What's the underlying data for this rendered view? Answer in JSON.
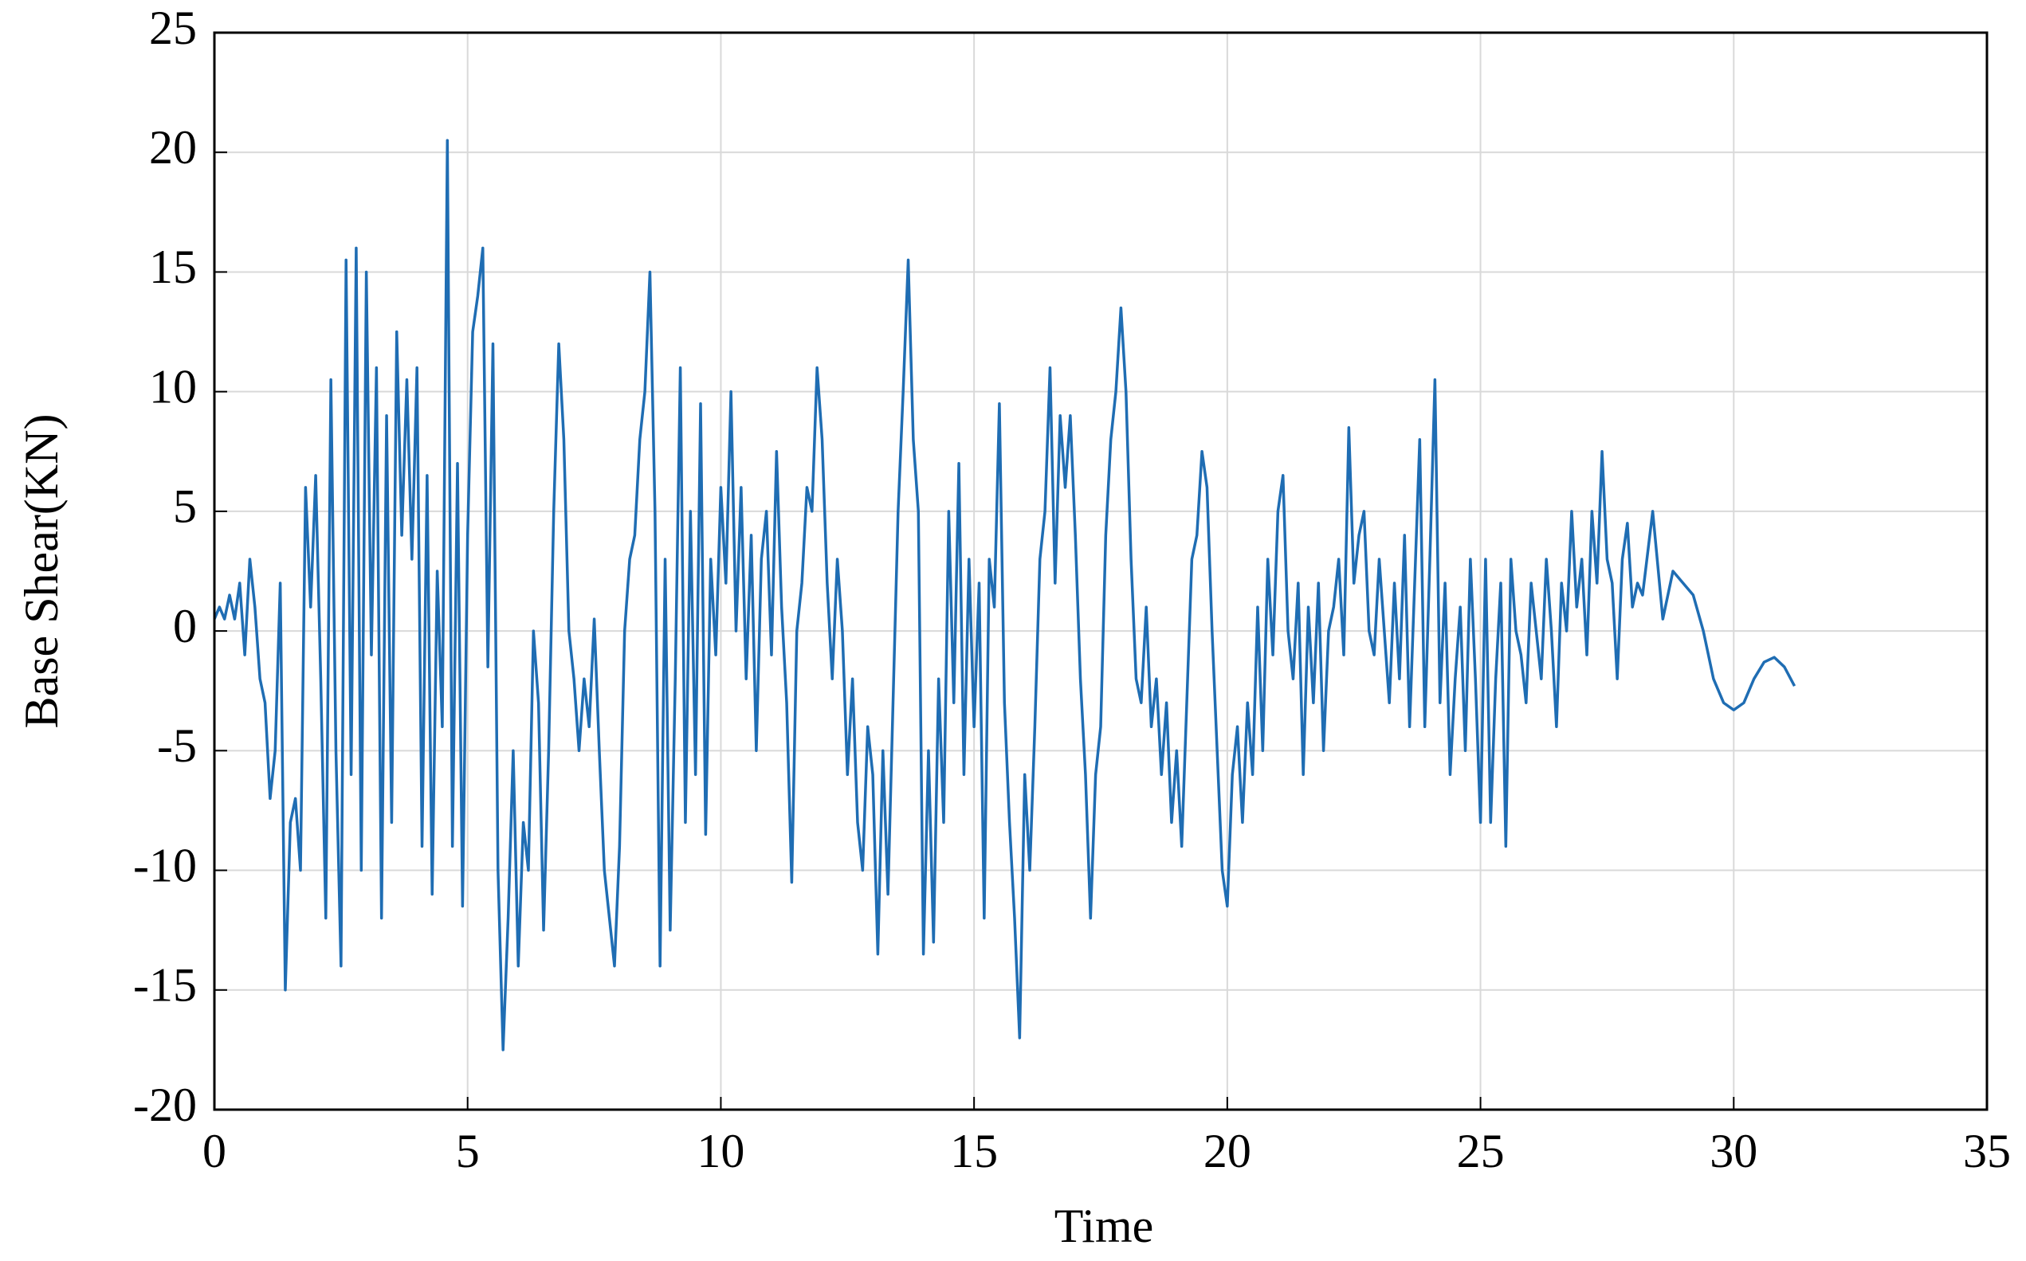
{
  "chart_data": {
    "type": "line",
    "xlabel": "Time",
    "ylabel": "Base Shear(KN)",
    "xlim": [
      0,
      35
    ],
    "xticks": [
      0,
      5,
      10,
      15,
      20,
      25,
      30,
      35
    ],
    "ylim": [
      -20,
      25
    ],
    "yticks": [
      -20,
      -15,
      -10,
      -5,
      0,
      5,
      10,
      15,
      20,
      25
    ],
    "grid": true,
    "series": [
      {
        "color": "#1f6db3",
        "x": [
          0,
          0.1,
          0.2,
          0.3,
          0.4,
          0.5,
          0.6,
          0.7,
          0.8,
          0.9,
          1,
          1.1,
          1.2,
          1.3,
          1.4,
          1.5,
          1.6,
          1.7,
          1.8,
          1.9,
          2,
          2.1,
          2.2,
          2.3,
          2.4,
          2.5,
          2.6,
          2.7,
          2.8,
          2.9,
          3,
          3.1,
          3.2,
          3.3,
          3.4,
          3.5,
          3.6,
          3.7,
          3.8,
          3.9,
          4,
          4.1,
          4.2,
          4.3,
          4.4,
          4.5,
          4.6,
          4.7,
          4.8,
          4.9,
          5,
          5.1,
          5.2,
          5.3,
          5.4,
          5.5,
          5.6,
          5.7,
          5.8,
          5.9,
          6,
          6.1,
          6.2,
          6.3,
          6.4,
          6.5,
          6.6,
          6.7,
          6.8,
          6.9,
          7,
          7.1,
          7.2,
          7.3,
          7.4,
          7.5,
          7.6,
          7.7,
          7.8,
          7.9,
          8,
          8.1,
          8.2,
          8.3,
          8.4,
          8.5,
          8.6,
          8.7,
          8.8,
          8.9,
          9,
          9.1,
          9.2,
          9.3,
          9.4,
          9.5,
          9.6,
          9.7,
          9.8,
          9.9,
          10,
          10.1,
          10.2,
          10.3,
          10.4,
          10.5,
          10.6,
          10.7,
          10.8,
          10.9,
          11,
          11.1,
          11.2,
          11.3,
          11.4,
          11.5,
          11.6,
          11.7,
          11.8,
          11.9,
          12,
          12.1,
          12.2,
          12.3,
          12.4,
          12.5,
          12.6,
          12.7,
          12.8,
          12.9,
          13,
          13.1,
          13.2,
          13.3,
          13.4,
          13.5,
          13.6,
          13.7,
          13.8,
          13.9,
          14,
          14.1,
          14.2,
          14.3,
          14.4,
          14.5,
          14.6,
          14.7,
          14.8,
          14.9,
          15,
          15.1,
          15.2,
          15.3,
          15.4,
          15.5,
          15.6,
          15.7,
          15.8,
          15.9,
          16,
          16.1,
          16.2,
          16.3,
          16.4,
          16.5,
          16.6,
          16.7,
          16.8,
          16.9,
          17,
          17.1,
          17.2,
          17.3,
          17.4,
          17.5,
          17.6,
          17.7,
          17.8,
          17.9,
          18,
          18.1,
          18.2,
          18.3,
          18.4,
          18.5,
          18.6,
          18.7,
          18.8,
          18.9,
          19,
          19.1,
          19.2,
          19.3,
          19.4,
          19.5,
          19.6,
          19.7,
          19.8,
          19.9,
          20,
          20.1,
          20.2,
          20.3,
          20.4,
          20.5,
          20.6,
          20.7,
          20.8,
          20.9,
          21,
          21.1,
          21.2,
          21.3,
          21.4,
          21.5,
          21.6,
          21.7,
          21.8,
          21.9,
          22,
          22.1,
          22.2,
          22.3,
          22.4,
          22.5,
          22.6,
          22.7,
          22.8,
          22.9,
          23,
          23.1,
          23.2,
          23.3,
          23.4,
          23.5,
          23.6,
          23.7,
          23.8,
          23.9,
          24,
          24.1,
          24.2,
          24.3,
          24.4,
          24.5,
          24.6,
          24.7,
          24.8,
          24.9,
          25,
          25.1,
          25.2,
          25.3,
          25.4,
          25.5,
          25.6,
          25.7,
          25.8,
          25.9,
          26,
          26.1,
          26.2,
          26.3,
          26.4,
          26.5,
          26.6,
          26.7,
          26.8,
          26.9,
          27,
          27.1,
          27.2,
          27.3,
          27.4,
          27.5,
          27.6,
          27.7,
          27.8,
          27.9,
          28,
          28.1,
          28.2,
          28.4,
          28.6,
          28.8,
          29,
          29.2,
          29.4,
          29.6,
          29.8,
          30,
          30.2,
          30.4,
          30.6,
          30.8,
          31,
          31.2
        ],
        "values": [
          0.5,
          1,
          0.5,
          1.5,
          0.5,
          2,
          -1,
          3,
          1,
          -2,
          -3,
          -7,
          -5,
          2,
          -15,
          -8,
          -7,
          -10,
          6,
          1,
          6.5,
          -2,
          -12,
          10.5,
          -5,
          -14,
          15.5,
          -6,
          16,
          -10,
          15,
          -1,
          11,
          -12,
          9,
          -8,
          12.5,
          4,
          10.5,
          3,
          11,
          -9,
          6.5,
          -11,
          2.5,
          -4,
          20.5,
          -9,
          7,
          -11.5,
          4,
          12.5,
          14,
          16,
          -1.5,
          12,
          -10,
          -17.5,
          -12,
          -5,
          -14,
          -8,
          -10,
          0,
          -3,
          -12.5,
          -5,
          5,
          12,
          8,
          0,
          -2,
          -5,
          -2,
          -4,
          0.5,
          -5,
          -10,
          -12,
          -14,
          -9,
          0,
          3,
          4,
          8,
          10,
          15,
          5,
          -14,
          3,
          -12.5,
          -2,
          11,
          -8,
          5,
          -6,
          9.5,
          -8.5,
          3,
          -1,
          6,
          2,
          10,
          0,
          6,
          -2,
          4,
          -5,
          3,
          5,
          -1,
          7.5,
          1,
          -3,
          -10.5,
          0,
          2,
          6,
          5,
          11,
          8,
          2,
          -2,
          3,
          0,
          -6,
          -2,
          -8,
          -10,
          -4,
          -6,
          -13.5,
          -5,
          -11,
          -3,
          5,
          10,
          15.5,
          8,
          5,
          -13.5,
          -5,
          -13,
          -2,
          -8,
          5,
          -3,
          7,
          -6,
          3,
          -4,
          2,
          -12,
          3,
          1,
          9.5,
          -3,
          -8,
          -12,
          -17,
          -6,
          -10,
          -4,
          3,
          5,
          11,
          2,
          9,
          6,
          9,
          4,
          -2,
          -6,
          -12,
          -6,
          -4,
          4,
          8,
          10,
          13.5,
          10,
          3,
          -2,
          -3,
          1,
          -4,
          -2,
          -6,
          -3,
          -8,
          -5,
          -9,
          -3,
          3,
          4,
          7.5,
          6,
          0,
          -5,
          -10,
          -11.5,
          -6,
          -4,
          -8,
          -3,
          -6,
          1,
          -5,
          3,
          -1,
          5,
          6.5,
          0,
          -2,
          2,
          -6,
          1,
          -3,
          2,
          -5,
          0,
          1,
          3,
          -1,
          8.5,
          2,
          4,
          5,
          0,
          -1,
          3,
          0,
          -3,
          2,
          -2,
          4,
          -4,
          2,
          8,
          -4,
          3,
          10.5,
          -3,
          2,
          -6,
          -2,
          1,
          -5,
          3,
          -2,
          -8,
          3,
          -8,
          -2,
          2,
          -9,
          3,
          0,
          -1,
          -3,
          2,
          0,
          -2,
          3,
          0,
          -4,
          2,
          0,
          5,
          1,
          3,
          -1,
          5,
          2,
          7.5,
          3,
          2,
          -2,
          3,
          4.5,
          1,
          2,
          1.5,
          5,
          0.5,
          2.5,
          2,
          1.5,
          0,
          -2,
          -3,
          -3.3,
          -3,
          -2,
          -1.3,
          -1.1,
          -1.5,
          -2.3
        ]
      }
    ]
  }
}
